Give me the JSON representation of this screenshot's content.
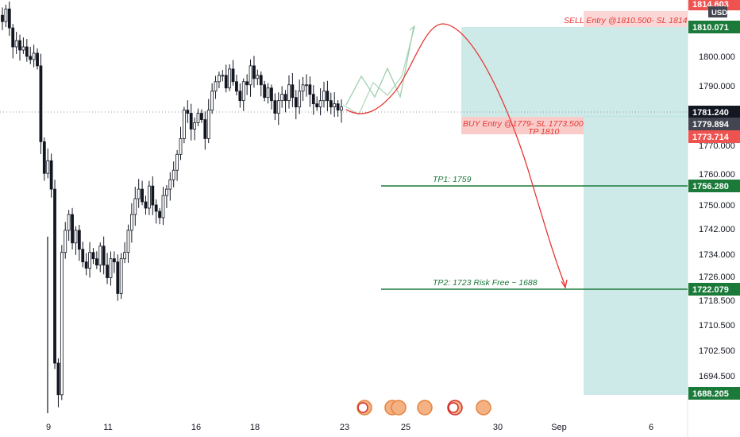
{
  "chart_data": {
    "type": "line",
    "title": "",
    "xlabel": "",
    "ylabel": "",
    "currency": "USD",
    "ylim": [
      1687,
      1815
    ],
    "y_ticks": [
      "1694.500",
      "1702.500",
      "1710.500",
      "1718.500",
      "1726.000",
      "1734.000",
      "1742.000",
      "1750.000",
      "1760.000",
      "1770.000",
      "1790.000",
      "1800.000"
    ],
    "x_ticks": [
      "9",
      "11",
      "16",
      "18",
      "23",
      "25",
      "30",
      "Sep",
      "6"
    ],
    "price_tags": [
      {
        "label": "1814.603",
        "color": "#ef5350"
      },
      {
        "label": "1810.071",
        "color": "#1b7a3a"
      },
      {
        "label": "1781.240",
        "color": "#131722"
      },
      {
        "label": "1779.894",
        "color": "#434651"
      },
      {
        "label": "1773.714",
        "color": "#ef5350"
      },
      {
        "label": "1756.280",
        "color": "#1b7a3a"
      },
      {
        "label": "1722.079",
        "color": "#1b7a3a"
      },
      {
        "label": "1688.205",
        "color": "#1b7a3a"
      }
    ],
    "annotations": {
      "sell": "SELL Entry @1810.500- SL 1814",
      "buy_line1": "BUY Entry @1779- SL 1773.500",
      "buy_line2": "TP 1810",
      "tp1": "TP1: 1759",
      "tp2": "TP2: 1723 Risk Free ~ 1688"
    },
    "series": [
      {
        "values": [
          1808,
          1812,
          1806,
          1800,
          1802,
          1799,
          1800,
          1797,
          1796,
          1798,
          1794,
          1770,
          1760,
          1764,
          1755,
          1700,
          1690,
          1735,
          1742,
          1747,
          1738,
          1742,
          1736,
          1732,
          1730,
          1735,
          1733,
          1731,
          1737,
          1731,
          1727,
          1733,
          1732,
          1722,
          1733,
          1735,
          1742,
          1747,
          1752,
          1755,
          1751,
          1749,
          1756,
          1750,
          1748,
          1746,
          1753,
          1755,
          1758,
          1761,
          1766,
          1771,
          1780,
          1779,
          1774,
          1776,
          1779,
          1777,
          1771,
          1780,
          1786,
          1789,
          1791,
          1791,
          1787,
          1793,
          1789,
          1786,
          1783,
          1789,
          1788,
          1794,
          1790,
          1791,
          1788,
          1784,
          1787,
          1783,
          1779,
          1783,
          1785,
          1783,
          1788,
          1784,
          1781,
          1786,
          1788,
          1788,
          1785,
          1782,
          1781,
          1783,
          1786,
          1783,
          1781,
          1782,
          1780,
          1781
        ]
      }
    ],
    "colors": {
      "sell_zone": "#b2dfdb",
      "stop_zone": "#f8c6c4",
      "target_line": "#1b7a3a",
      "projection": "#e53935",
      "zigzag": "#8bc4a0"
    }
  }
}
